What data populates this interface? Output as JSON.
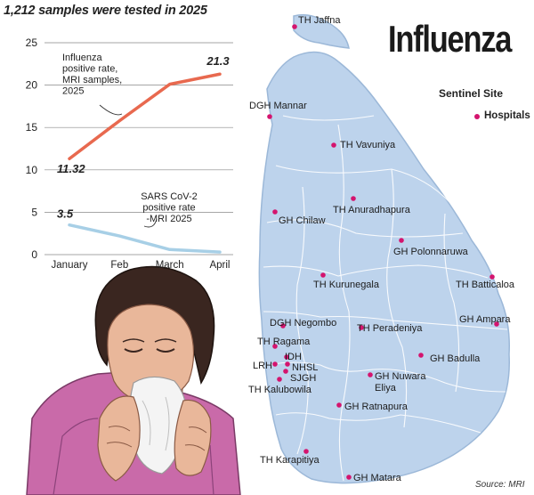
{
  "header": {
    "headline": "Influenza",
    "subtitle": "1,212 samples were tested in 2025",
    "source": "Source: MRI"
  },
  "legend": {
    "title": "Sentinel Site",
    "item": "Hospitals",
    "marker_color": "#d4146e"
  },
  "chart_data": {
    "type": "line",
    "categories": [
      "January",
      "Feb",
      "March",
      "April"
    ],
    "y_ticks": [
      0,
      5,
      10,
      15,
      20,
      25
    ],
    "ylim": [
      0,
      25
    ],
    "grid": true,
    "series": [
      {
        "name": "Influenza positive rate, MRI samples, 2025",
        "name_lines": [
          "Influenza",
          "positive rate,",
          "MRI samples,",
          "2025"
        ],
        "values": [
          11.32,
          15.8,
          20.1,
          21.3
        ],
        "labels": {
          "0": "11.32",
          "3": "21.3"
        },
        "color": "#e8694f"
      },
      {
        "name": "SARS CoV-2 positive rate -MRI 2025",
        "name_lines": [
          "SARS CoV-2",
          "positive rate",
          "-MRI 2025"
        ],
        "values": [
          3.5,
          2.2,
          0.6,
          0.3
        ],
        "labels": {
          "0": "3.5"
        },
        "color": "#a7cfe6"
      }
    ]
  },
  "map": {
    "sites": [
      {
        "name": "TH Jaffna"
      },
      {
        "name": "DGH Mannar"
      },
      {
        "name": "TH Vavuniya"
      },
      {
        "name": "TH Anuradhapura"
      },
      {
        "name": "GH Chilaw"
      },
      {
        "name": "GH Polonnaruwa"
      },
      {
        "name": "TH Kurunegala"
      },
      {
        "name": "TH Batticaloa"
      },
      {
        "name": "DGH Negombo"
      },
      {
        "name": "TH Ragama"
      },
      {
        "name": "TH Peradeniya"
      },
      {
        "name": "GH Ampara"
      },
      {
        "name": "IDH"
      },
      {
        "name": "LRH"
      },
      {
        "name": "NHSL"
      },
      {
        "name": "SJGH"
      },
      {
        "name": "TH Kalubowila"
      },
      {
        "name": "GH Badulla"
      },
      {
        "name": "GH Nuwara Eliya",
        "lines": [
          "GH Nuwara",
          "Eliya"
        ]
      },
      {
        "name": "GH Ratnapura"
      },
      {
        "name": "TH Karapitiya"
      },
      {
        "name": "GH Matara"
      }
    ]
  },
  "colors": {
    "land": "#bdd3ec",
    "land_stroke": "#9cb8d8",
    "district_lines": "#ffffff",
    "skin": "#e9b79a",
    "shirt": "#c96aa9",
    "hair": "#3a2620"
  }
}
